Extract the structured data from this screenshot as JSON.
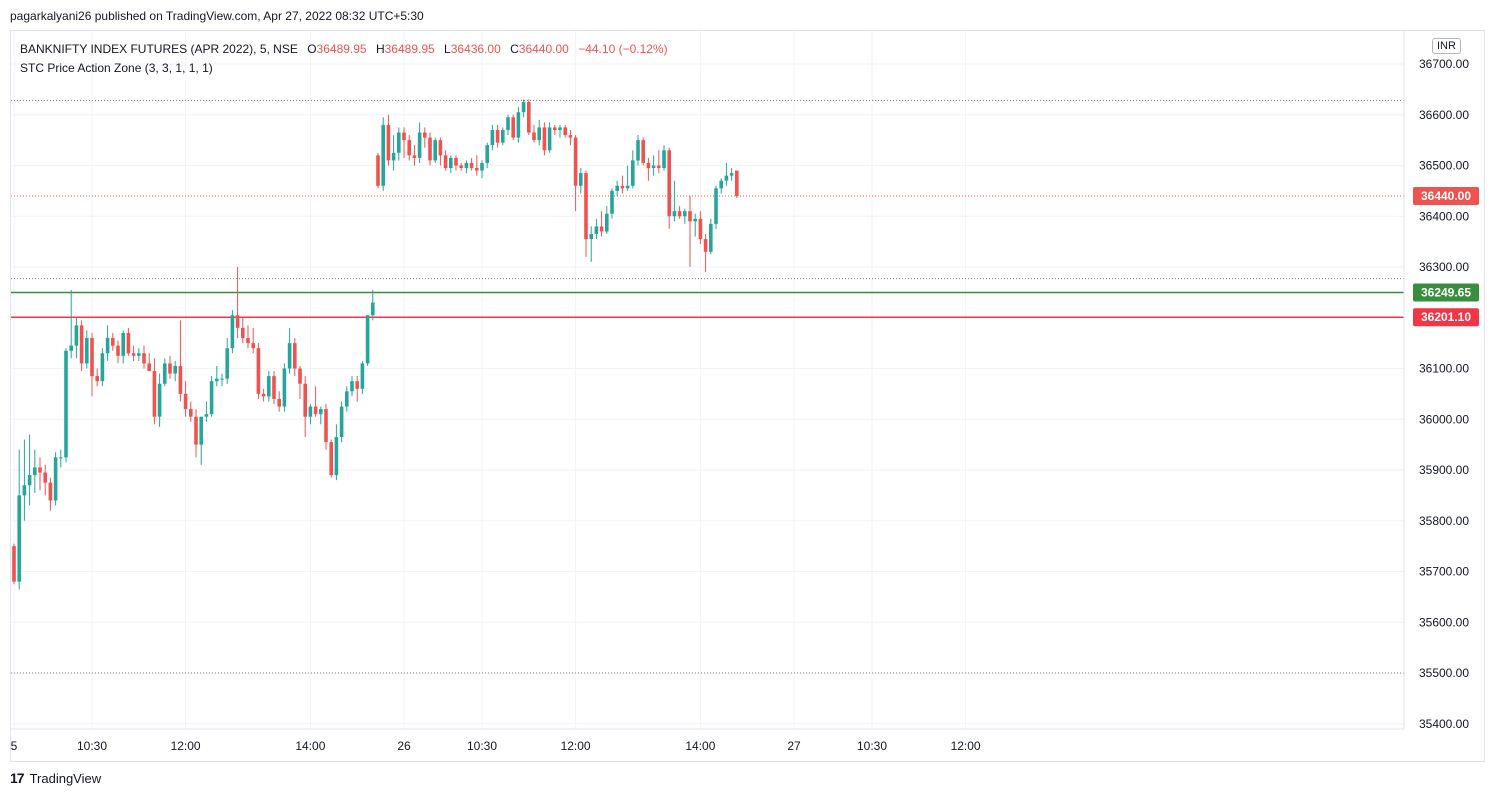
{
  "header": {
    "published": "pagarkalyani26 published on TradingView.com, Apr 27, 2022 08:32 UTC+5:30"
  },
  "legend": {
    "symbol": "BANKNIFTY INDEX FUTURES (APR 2022), 5, NSE",
    "o_label": "O",
    "o_value": "36489.95",
    "h_label": "H",
    "h_value": "36489.95",
    "l_label": "L",
    "l_value": "36436.00",
    "c_label": "C",
    "c_value": "36440.00",
    "change": "−44.10 (−0.12%)",
    "indicator": "STC Price Action Zone (3, 3, 1, 1, 1)"
  },
  "currency": "INR",
  "footer": {
    "brand": "TradingView",
    "logo_text": "17"
  },
  "colors": {
    "up": "#26a69a",
    "down": "#ef5350",
    "green_line": "#388e3c",
    "red_line": "#f23645",
    "last_tag": "#ef5350"
  },
  "chart_data": {
    "type": "candlestick",
    "title": "BANKNIFTY INDEX FUTURES (APR 2022), 5, NSE",
    "y_ticks": [
      "36700.00",
      "36600.00",
      "36500.00",
      "36400.00",
      "36300.00",
      "36200.00",
      "36100.00",
      "36000.00",
      "35900.00",
      "35800.00",
      "35700.00",
      "35600.00",
      "35500.00",
      "35400.00"
    ],
    "ylim": [
      35390,
      36735
    ],
    "x_ticks": [
      {
        "label": "5",
        "index": 0
      },
      {
        "label": "10:30",
        "index": 15
      },
      {
        "label": "12:00",
        "index": 33
      },
      {
        "label": "14:00",
        "index": 57
      },
      {
        "label": "26",
        "index": 75
      },
      {
        "label": "10:30",
        "index": 90
      },
      {
        "label": "12:00",
        "index": 108
      },
      {
        "label": "14:00",
        "index": 132
      },
      {
        "label": "27",
        "index": 150
      },
      {
        "label": "10:30",
        "index": 165
      },
      {
        "label": "12:00",
        "index": 183
      }
    ],
    "n_slots": 203,
    "horizontal_levels": [
      {
        "value": 36249.65,
        "label": "36249.65",
        "color": "#388e3c",
        "style": "solid"
      },
      {
        "value": 36201.1,
        "label": "36201.10",
        "color": "#f23645",
        "style": "solid"
      },
      {
        "value": 36440.0,
        "label": "36440.00",
        "color": "#ef5350",
        "style": "dotted",
        "last_price": true
      },
      {
        "value": 36628,
        "label": "",
        "color": "#787b86",
        "style": "dotted"
      },
      {
        "value": 36277,
        "label": "",
        "color": "#787b86",
        "style": "dotted"
      },
      {
        "value": 35500,
        "label": "",
        "color": "#787b86",
        "style": "dotted"
      }
    ],
    "candles": [
      {
        "o": 35750,
        "h": 35755,
        "l": 35675,
        "c": 35680
      },
      {
        "o": 35680,
        "h": 35940,
        "l": 35665,
        "c": 35850
      },
      {
        "o": 35850,
        "h": 35960,
        "l": 35800,
        "c": 35870
      },
      {
        "o": 35870,
        "h": 35970,
        "l": 35830,
        "c": 35890
      },
      {
        "o": 35890,
        "h": 35940,
        "l": 35855,
        "c": 35905
      },
      {
        "o": 35905,
        "h": 35925,
        "l": 35860,
        "c": 35895
      },
      {
        "o": 35895,
        "h": 35910,
        "l": 35850,
        "c": 35875
      },
      {
        "o": 35875,
        "h": 35885,
        "l": 35820,
        "c": 35840
      },
      {
        "o": 35840,
        "h": 35935,
        "l": 35830,
        "c": 35925
      },
      {
        "o": 35925,
        "h": 35940,
        "l": 35905,
        "c": 35925
      },
      {
        "o": 35925,
        "h": 36140,
        "l": 35915,
        "c": 36135
      },
      {
        "o": 36135,
        "h": 36255,
        "l": 36120,
        "c": 36145
      },
      {
        "o": 36145,
        "h": 36200,
        "l": 36120,
        "c": 36185
      },
      {
        "o": 36185,
        "h": 36195,
        "l": 36095,
        "c": 36110
      },
      {
        "o": 36110,
        "h": 36175,
        "l": 36100,
        "c": 36160
      },
      {
        "o": 36160,
        "h": 36170,
        "l": 36045,
        "c": 36085
      },
      {
        "o": 36085,
        "h": 36100,
        "l": 36065,
        "c": 36075
      },
      {
        "o": 36075,
        "h": 36140,
        "l": 36065,
        "c": 36130
      },
      {
        "o": 36130,
        "h": 36185,
        "l": 36115,
        "c": 36160
      },
      {
        "o": 36160,
        "h": 36170,
        "l": 36135,
        "c": 36145
      },
      {
        "o": 36145,
        "h": 36155,
        "l": 36110,
        "c": 36125
      },
      {
        "o": 36125,
        "h": 36175,
        "l": 36110,
        "c": 36170
      },
      {
        "o": 36170,
        "h": 36180,
        "l": 36125,
        "c": 36130
      },
      {
        "o": 36130,
        "h": 36145,
        "l": 36115,
        "c": 36125
      },
      {
        "o": 36125,
        "h": 36140,
        "l": 36115,
        "c": 36130
      },
      {
        "o": 36130,
        "h": 36145,
        "l": 36100,
        "c": 36110
      },
      {
        "o": 36110,
        "h": 36130,
        "l": 36095,
        "c": 36095
      },
      {
        "o": 36095,
        "h": 36120,
        "l": 35990,
        "c": 36005
      },
      {
        "o": 36005,
        "h": 36090,
        "l": 35985,
        "c": 36070
      },
      {
        "o": 36070,
        "h": 36120,
        "l": 36065,
        "c": 36110
      },
      {
        "o": 36110,
        "h": 36125,
        "l": 36080,
        "c": 36090
      },
      {
        "o": 36090,
        "h": 36115,
        "l": 36075,
        "c": 36105
      },
      {
        "o": 36105,
        "h": 36195,
        "l": 36035,
        "c": 36050
      },
      {
        "o": 36050,
        "h": 36075,
        "l": 36005,
        "c": 36020
      },
      {
        "o": 36020,
        "h": 36035,
        "l": 35995,
        "c": 36005
      },
      {
        "o": 36005,
        "h": 36020,
        "l": 35925,
        "c": 35950
      },
      {
        "o": 35950,
        "h": 36005,
        "l": 35910,
        "c": 36005
      },
      {
        "o": 36005,
        "h": 36035,
        "l": 35995,
        "c": 36010
      },
      {
        "o": 36010,
        "h": 36085,
        "l": 36005,
        "c": 36075
      },
      {
        "o": 36075,
        "h": 36105,
        "l": 36065,
        "c": 36080
      },
      {
        "o": 36080,
        "h": 36090,
        "l": 36065,
        "c": 36080
      },
      {
        "o": 36080,
        "h": 36160,
        "l": 36070,
        "c": 36140
      },
      {
        "o": 36140,
        "h": 36215,
        "l": 36130,
        "c": 36205
      },
      {
        "o": 36205,
        "h": 36300,
        "l": 36160,
        "c": 36180
      },
      {
        "o": 36180,
        "h": 36200,
        "l": 36150,
        "c": 36160
      },
      {
        "o": 36160,
        "h": 36185,
        "l": 36140,
        "c": 36150
      },
      {
        "o": 36150,
        "h": 36180,
        "l": 36130,
        "c": 36140
      },
      {
        "o": 36140,
        "h": 36150,
        "l": 36040,
        "c": 36050
      },
      {
        "o": 36050,
        "h": 36060,
        "l": 36035,
        "c": 36045
      },
      {
        "o": 36045,
        "h": 36095,
        "l": 36035,
        "c": 36085
      },
      {
        "o": 36085,
        "h": 36095,
        "l": 36030,
        "c": 36040
      },
      {
        "o": 36040,
        "h": 36055,
        "l": 36015,
        "c": 36025
      },
      {
        "o": 36025,
        "h": 36110,
        "l": 36015,
        "c": 36100
      },
      {
        "o": 36100,
        "h": 36180,
        "l": 36090,
        "c": 36150
      },
      {
        "o": 36150,
        "h": 36160,
        "l": 36085,
        "c": 36100
      },
      {
        "o": 36100,
        "h": 36105,
        "l": 36040,
        "c": 36070
      },
      {
        "o": 36070,
        "h": 36085,
        "l": 35965,
        "c": 36005
      },
      {
        "o": 36005,
        "h": 36030,
        "l": 35990,
        "c": 36025
      },
      {
        "o": 36025,
        "h": 36065,
        "l": 36005,
        "c": 36010
      },
      {
        "o": 36010,
        "h": 36025,
        "l": 35990,
        "c": 36020
      },
      {
        "o": 36020,
        "h": 36030,
        "l": 35940,
        "c": 35955
      },
      {
        "o": 35955,
        "h": 35960,
        "l": 35885,
        "c": 35890
      },
      {
        "o": 35890,
        "h": 35990,
        "l": 35880,
        "c": 35965
      },
      {
        "o": 35965,
        "h": 36035,
        "l": 35955,
        "c": 36025
      },
      {
        "o": 36025,
        "h": 36065,
        "l": 36015,
        "c": 36055
      },
      {
        "o": 36055,
        "h": 36085,
        "l": 36045,
        "c": 36075
      },
      {
        "o": 36075,
        "h": 36085,
        "l": 36035,
        "c": 36060
      },
      {
        "o": 36060,
        "h": 36115,
        "l": 36050,
        "c": 36110
      },
      {
        "o": 36110,
        "h": 36205,
        "l": 36105,
        "c": 36205
      },
      {
        "o": 36205,
        "h": 36255,
        "l": 36195,
        "c": 36230
      },
      {
        "o": 36520,
        "h": 36525,
        "l": 36455,
        "c": 36460
      },
      {
        "o": 36460,
        "h": 36595,
        "l": 36450,
        "c": 36580
      },
      {
        "o": 36580,
        "h": 36600,
        "l": 36500,
        "c": 36510
      },
      {
        "o": 36510,
        "h": 36560,
        "l": 36490,
        "c": 36525
      },
      {
        "o": 36525,
        "h": 36575,
        "l": 36510,
        "c": 36565
      },
      {
        "o": 36565,
        "h": 36575,
        "l": 36515,
        "c": 36550
      },
      {
        "o": 36550,
        "h": 36560,
        "l": 36510,
        "c": 36520
      },
      {
        "o": 36520,
        "h": 36540,
        "l": 36500,
        "c": 36515
      },
      {
        "o": 36515,
        "h": 36585,
        "l": 36505,
        "c": 36565
      },
      {
        "o": 36565,
        "h": 36575,
        "l": 36535,
        "c": 36555
      },
      {
        "o": 36555,
        "h": 36565,
        "l": 36500,
        "c": 36510
      },
      {
        "o": 36510,
        "h": 36555,
        "l": 36505,
        "c": 36550
      },
      {
        "o": 36550,
        "h": 36555,
        "l": 36500,
        "c": 36520
      },
      {
        "o": 36520,
        "h": 36530,
        "l": 36490,
        "c": 36495
      },
      {
        "o": 36495,
        "h": 36520,
        "l": 36485,
        "c": 36515
      },
      {
        "o": 36515,
        "h": 36520,
        "l": 36490,
        "c": 36500
      },
      {
        "o": 36500,
        "h": 36505,
        "l": 36490,
        "c": 36495
      },
      {
        "o": 36495,
        "h": 36510,
        "l": 36485,
        "c": 36505
      },
      {
        "o": 36505,
        "h": 36515,
        "l": 36490,
        "c": 36495
      },
      {
        "o": 36495,
        "h": 36520,
        "l": 36480,
        "c": 36490
      },
      {
        "o": 36490,
        "h": 36510,
        "l": 36475,
        "c": 36505
      },
      {
        "o": 36505,
        "h": 36545,
        "l": 36495,
        "c": 36540
      },
      {
        "o": 36540,
        "h": 36580,
        "l": 36530,
        "c": 36570
      },
      {
        "o": 36570,
        "h": 36580,
        "l": 36535,
        "c": 36545
      },
      {
        "o": 36545,
        "h": 36575,
        "l": 36540,
        "c": 36570
      },
      {
        "o": 36570,
        "h": 36600,
        "l": 36560,
        "c": 36595
      },
      {
        "o": 36595,
        "h": 36600,
        "l": 36550,
        "c": 36555
      },
      {
        "o": 36555,
        "h": 36615,
        "l": 36545,
        "c": 36605
      },
      {
        "o": 36605,
        "h": 36630,
        "l": 36595,
        "c": 36625
      },
      {
        "o": 36625,
        "h": 36630,
        "l": 36560,
        "c": 36565
      },
      {
        "o": 36565,
        "h": 36580,
        "l": 36545,
        "c": 36550
      },
      {
        "o": 36550,
        "h": 36590,
        "l": 36540,
        "c": 36575
      },
      {
        "o": 36575,
        "h": 36585,
        "l": 36520,
        "c": 36530
      },
      {
        "o": 36530,
        "h": 36585,
        "l": 36525,
        "c": 36575
      },
      {
        "o": 36575,
        "h": 36580,
        "l": 36560,
        "c": 36570
      },
      {
        "o": 36570,
        "h": 36580,
        "l": 36555,
        "c": 36575
      },
      {
        "o": 36575,
        "h": 36580,
        "l": 36555,
        "c": 36560
      },
      {
        "o": 36560,
        "h": 36570,
        "l": 36540,
        "c": 36555
      },
      {
        "o": 36555,
        "h": 36560,
        "l": 36410,
        "c": 36460
      },
      {
        "o": 36460,
        "h": 36495,
        "l": 36445,
        "c": 36485
      },
      {
        "o": 36485,
        "h": 36490,
        "l": 36320,
        "c": 36355
      },
      {
        "o": 36355,
        "h": 36380,
        "l": 36310,
        "c": 36365
      },
      {
        "o": 36365,
        "h": 36395,
        "l": 36355,
        "c": 36380
      },
      {
        "o": 36380,
        "h": 36410,
        "l": 36360,
        "c": 36370
      },
      {
        "o": 36370,
        "h": 36420,
        "l": 36365,
        "c": 36405
      },
      {
        "o": 36405,
        "h": 36455,
        "l": 36395,
        "c": 36450
      },
      {
        "o": 36450,
        "h": 36470,
        "l": 36440,
        "c": 36460
      },
      {
        "o": 36460,
        "h": 36480,
        "l": 36445,
        "c": 36455
      },
      {
        "o": 36455,
        "h": 36500,
        "l": 36450,
        "c": 36460
      },
      {
        "o": 36460,
        "h": 36530,
        "l": 36455,
        "c": 36510
      },
      {
        "o": 36510,
        "h": 36560,
        "l": 36500,
        "c": 36550
      },
      {
        "o": 36550,
        "h": 36555,
        "l": 36500,
        "c": 36505
      },
      {
        "o": 36505,
        "h": 36515,
        "l": 36470,
        "c": 36495
      },
      {
        "o": 36495,
        "h": 36520,
        "l": 36480,
        "c": 36500
      },
      {
        "o": 36500,
        "h": 36530,
        "l": 36485,
        "c": 36495
      },
      {
        "o": 36495,
        "h": 36540,
        "l": 36490,
        "c": 36530
      },
      {
        "o": 36530,
        "h": 36535,
        "l": 36375,
        "c": 36400
      },
      {
        "o": 36400,
        "h": 36470,
        "l": 36390,
        "c": 36410
      },
      {
        "o": 36410,
        "h": 36420,
        "l": 36395,
        "c": 36400
      },
      {
        "o": 36400,
        "h": 36415,
        "l": 36385,
        "c": 36410
      },
      {
        "o": 36410,
        "h": 36440,
        "l": 36300,
        "c": 36390
      },
      {
        "o": 36390,
        "h": 36405,
        "l": 36360,
        "c": 36395
      },
      {
        "o": 36395,
        "h": 36410,
        "l": 36345,
        "c": 36355
      },
      {
        "o": 36355,
        "h": 36365,
        "l": 36290,
        "c": 36330
      },
      {
        "o": 36330,
        "h": 36395,
        "l": 36325,
        "c": 36385
      },
      {
        "o": 36385,
        "h": 36460,
        "l": 36375,
        "c": 36455
      },
      {
        "o": 36455,
        "h": 36475,
        "l": 36445,
        "c": 36470
      },
      {
        "o": 36470,
        "h": 36505,
        "l": 36460,
        "c": 36480
      },
      {
        "o": 36480,
        "h": 36495,
        "l": 36470,
        "c": 36485
      },
      {
        "o": 36489.95,
        "h": 36489.95,
        "l": 36436,
        "c": 36440
      }
    ]
  }
}
